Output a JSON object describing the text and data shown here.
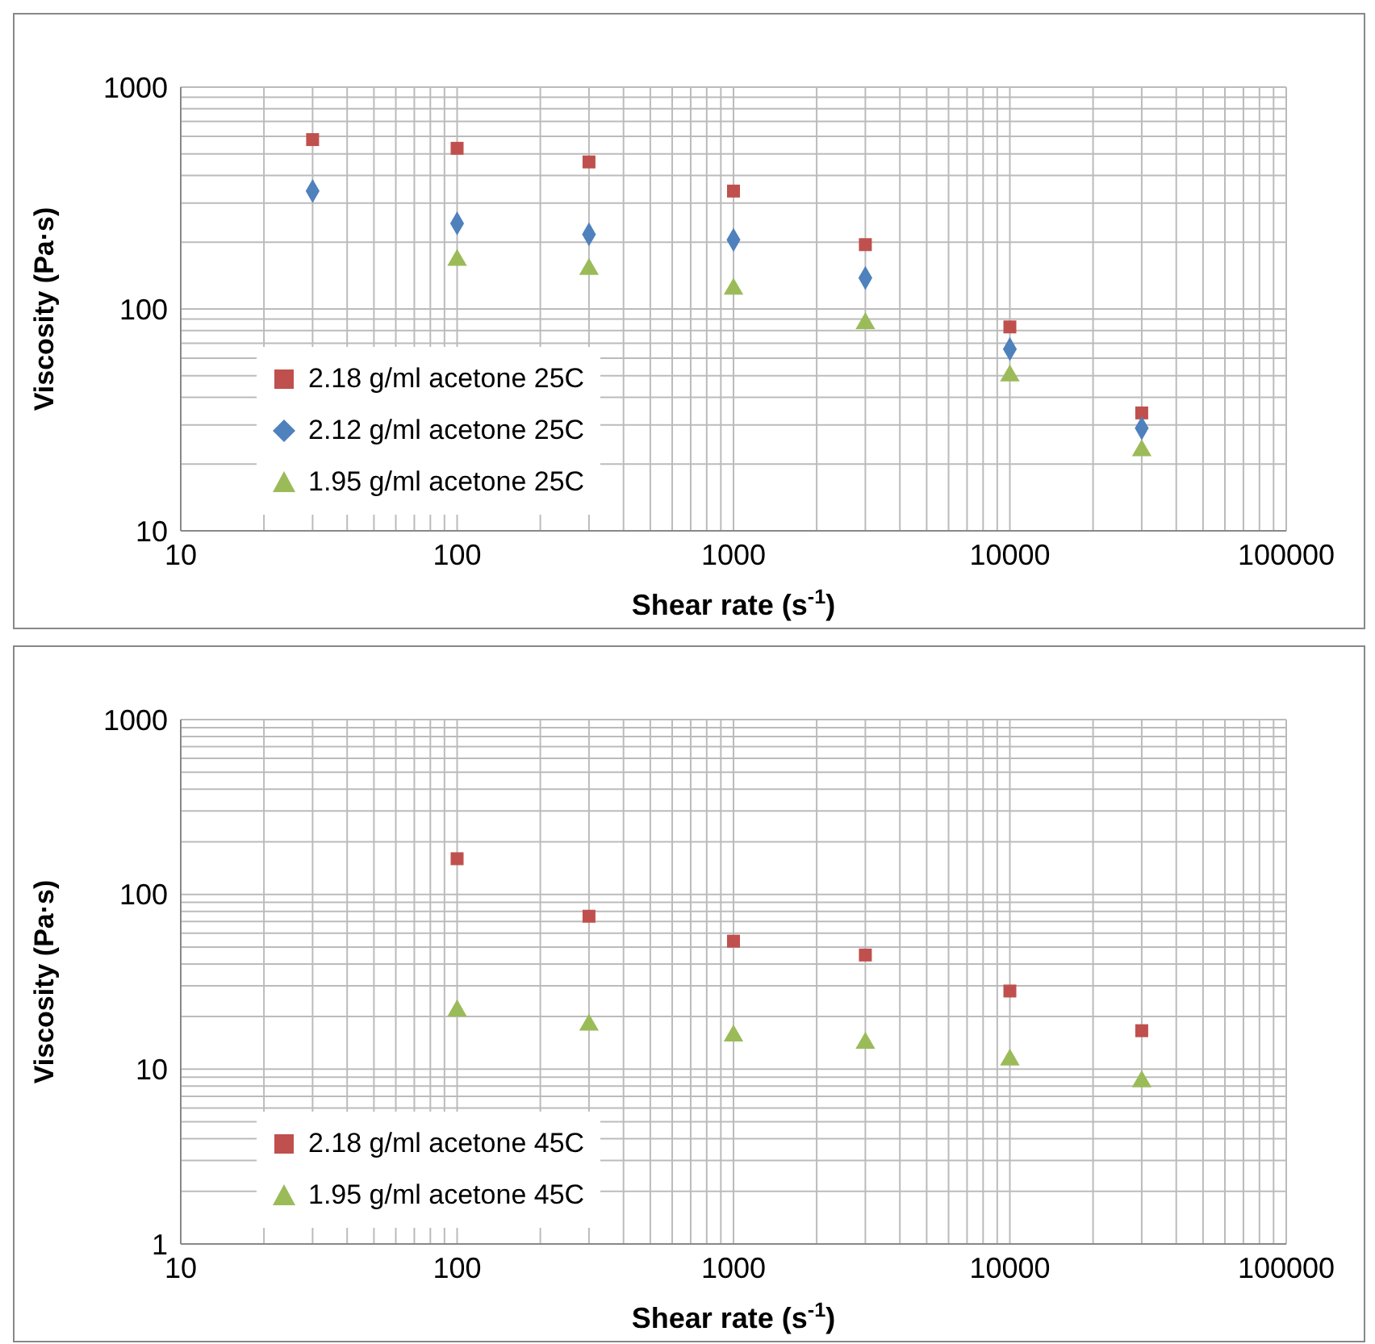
{
  "chart_data": [
    {
      "type": "scatter",
      "xlabel": "Shear rate (s$^{-1}$)",
      "ylabel": "Viscosity (Pa·s)",
      "log": "xy",
      "grid": true,
      "legend": "bottom left",
      "x": [
        30,
        100,
        300,
        1000,
        3000,
        10000,
        30000
      ],
      "xlim": [
        10,
        100000
      ],
      "xticks": [
        10,
        {
          "value": 20,
          "label": null
        },
        {
          "value": 30,
          "label": null
        },
        {
          "value": 40,
          "label": null
        },
        {
          "value": 50,
          "label": null
        },
        {
          "value": 60,
          "label": null
        },
        {
          "value": 70,
          "label": null
        },
        {
          "value": 80,
          "label": null
        },
        {
          "value": 90,
          "label": null
        },
        100,
        {
          "value": 200,
          "label": null
        },
        {
          "value": 300,
          "label": null
        },
        {
          "value": 400,
          "label": null
        },
        {
          "value": 500,
          "label": null
        },
        {
          "value": 600,
          "label": null
        },
        {
          "value": 700,
          "label": null
        },
        {
          "value": 800,
          "label": null
        },
        {
          "value": 900,
          "label": null
        },
        1000,
        {
          "value": 2000,
          "label": null
        },
        {
          "value": 3000,
          "label": null
        },
        {
          "value": 4000,
          "label": null
        },
        {
          "value": 5000,
          "label": null
        },
        {
          "value": 6000,
          "label": null
        },
        {
          "value": 7000,
          "label": null
        },
        {
          "value": 8000,
          "label": null
        },
        {
          "value": 9000,
          "label": null
        },
        10000,
        {
          "value": 20000,
          "label": null
        },
        {
          "value": 30000,
          "label": null
        },
        {
          "value": 40000,
          "label": null
        },
        {
          "value": 50000,
          "label": null
        },
        {
          "value": 60000,
          "label": null
        },
        {
          "value": 70000,
          "label": null
        },
        {
          "value": 80000,
          "label": null
        },
        {
          "value": 90000,
          "label": null
        },
        100000
      ],
      "ylim": [
        10,
        1000
      ],
      "yticks": [
        10,
        {
          "value": 20,
          "label": null
        },
        {
          "value": 30,
          "label": null
        },
        {
          "value": 40,
          "label": null
        },
        {
          "value": 50,
          "label": null
        },
        {
          "value": 60,
          "label": null
        },
        {
          "value": 70,
          "label": null
        },
        {
          "value": 80,
          "label": null
        },
        {
          "value": 90,
          "label": null
        },
        100,
        {
          "value": 200,
          "label": null
        },
        {
          "value": 300,
          "label": null
        },
        {
          "value": 400,
          "label": null
        },
        {
          "value": 500,
          "label": null
        },
        {
          "value": 600,
          "label": null
        },
        {
          "value": 700,
          "label": null
        },
        {
          "value": 800,
          "label": null
        },
        {
          "value": 900,
          "label": null
        },
        1000
      ],
      "series": [
        {
          "name": "2.18 g/ml acetone 25C",
          "color": "#c0504d",
          "marker": "square",
          "values": [
            580,
            530,
            460,
            340,
            195,
            83,
            34
          ]
        },
        {
          "name": "2.12 g/ml acetone 25C",
          "color": "#4f81bd",
          "marker": "diamond",
          "values": [
            340,
            243,
            217,
            205,
            138,
            66,
            29
          ]
        },
        {
          "name": "1.95 g/ml acetone 25C",
          "color": "#9bbb59",
          "marker": "triangle",
          "values": [
            null,
            166,
            151,
            123,
            86,
            50,
            23
          ]
        }
      ]
    },
    {
      "type": "scatter",
      "xlabel": "Shear rate (s$^{-1}$)",
      "ylabel": "Viscosity (Pa·s)",
      "log": "xy",
      "grid": true,
      "legend": "bottom left",
      "x": [
        100,
        300,
        1000,
        3000,
        10000,
        30000
      ],
      "xlim": [
        10,
        100000
      ],
      "xticks": [
        10,
        {
          "value": 20,
          "label": null
        },
        {
          "value": 30,
          "label": null
        },
        {
          "value": 40,
          "label": null
        },
        {
          "value": 50,
          "label": null
        },
        {
          "value": 60,
          "label": null
        },
        {
          "value": 70,
          "label": null
        },
        {
          "value": 80,
          "label": null
        },
        {
          "value": 90,
          "label": null
        },
        100,
        {
          "value": 200,
          "label": null
        },
        {
          "value": 300,
          "label": null
        },
        {
          "value": 400,
          "label": null
        },
        {
          "value": 500,
          "label": null
        },
        {
          "value": 600,
          "label": null
        },
        {
          "value": 700,
          "label": null
        },
        {
          "value": 800,
          "label": null
        },
        {
          "value": 900,
          "label": null
        },
        1000,
        {
          "value": 2000,
          "label": null
        },
        {
          "value": 3000,
          "label": null
        },
        {
          "value": 4000,
          "label": null
        },
        {
          "value": 5000,
          "label": null
        },
        {
          "value": 6000,
          "label": null
        },
        {
          "value": 7000,
          "label": null
        },
        {
          "value": 8000,
          "label": null
        },
        {
          "value": 9000,
          "label": null
        },
        10000,
        {
          "value": 20000,
          "label": null
        },
        {
          "value": 30000,
          "label": null
        },
        {
          "value": 40000,
          "label": null
        },
        {
          "value": 50000,
          "label": null
        },
        {
          "value": 60000,
          "label": null
        },
        {
          "value": 70000,
          "label": null
        },
        {
          "value": 80000,
          "label": null
        },
        {
          "value": 90000,
          "label": null
        },
        100000
      ],
      "ylim": [
        1,
        1000
      ],
      "yticks": [
        1,
        {
          "value": 2,
          "label": null
        },
        {
          "value": 3,
          "label": null
        },
        {
          "value": 4,
          "label": null
        },
        {
          "value": 5,
          "label": null
        },
        {
          "value": 6,
          "label": null
        },
        {
          "value": 7,
          "label": null
        },
        {
          "value": 8,
          "label": null
        },
        {
          "value": 9,
          "label": null
        },
        10,
        {
          "value": 20,
          "label": null
        },
        {
          "value": 30,
          "label": null
        },
        {
          "value": 40,
          "label": null
        },
        {
          "value": 50,
          "label": null
        },
        {
          "value": 60,
          "label": null
        },
        {
          "value": 70,
          "label": null
        },
        {
          "value": 80,
          "label": null
        },
        {
          "value": 90,
          "label": null
        },
        100,
        {
          "value": 200,
          "label": null
        },
        {
          "value": 300,
          "label": null
        },
        {
          "value": 400,
          "label": null
        },
        {
          "value": 500,
          "label": null
        },
        {
          "value": 600,
          "label": null
        },
        {
          "value": 700,
          "label": null
        },
        {
          "value": 800,
          "label": null
        },
        {
          "value": 900,
          "label": null
        },
        1000
      ],
      "series": [
        {
          "name": "2.18 g/ml acetone 45C",
          "color": "#c0504d",
          "marker": "square",
          "values": [
            160,
            75,
            54,
            45,
            28,
            16.6
          ]
        },
        {
          "name": "1.95 g/ml acetone 45C",
          "color": "#9bbb59",
          "marker": "triangle",
          "values": [
            21.6,
            17.9,
            15.5,
            14.1,
            11.3,
            8.5
          ]
        }
      ]
    }
  ]
}
